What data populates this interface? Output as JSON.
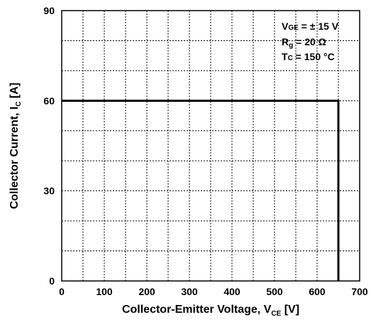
{
  "chart_data": {
    "type": "line",
    "xlabel": {
      "main": "Collector-Emitter Voltage, V",
      "sub": "CE",
      "unit": " [V]"
    },
    "ylabel": {
      "main": "Collector Current, I",
      "sub": "C",
      "unit": " [A]"
    },
    "xlim": [
      0,
      700
    ],
    "ylim": [
      0,
      90
    ],
    "x_ticks": [
      0,
      100,
      200,
      300,
      400,
      500,
      600,
      700
    ],
    "y_ticks": [
      0,
      30,
      60,
      90
    ],
    "x_grid_step": 50,
    "y_grid_step": 10,
    "grid": true,
    "series": [
      {
        "x": [
          0,
          650,
          650
        ],
        "y": [
          60,
          60,
          0
        ]
      }
    ],
    "annotations": {
      "position": "top-right",
      "lines": [
        {
          "main": "V",
          "sub": "GE",
          "rest": " = ± 15 V"
        },
        {
          "main": "R",
          "sub": "g",
          "rest": " = 20 Ω"
        },
        {
          "main": "T",
          "sub": "C",
          "rest": " = 150 °C"
        }
      ]
    }
  }
}
